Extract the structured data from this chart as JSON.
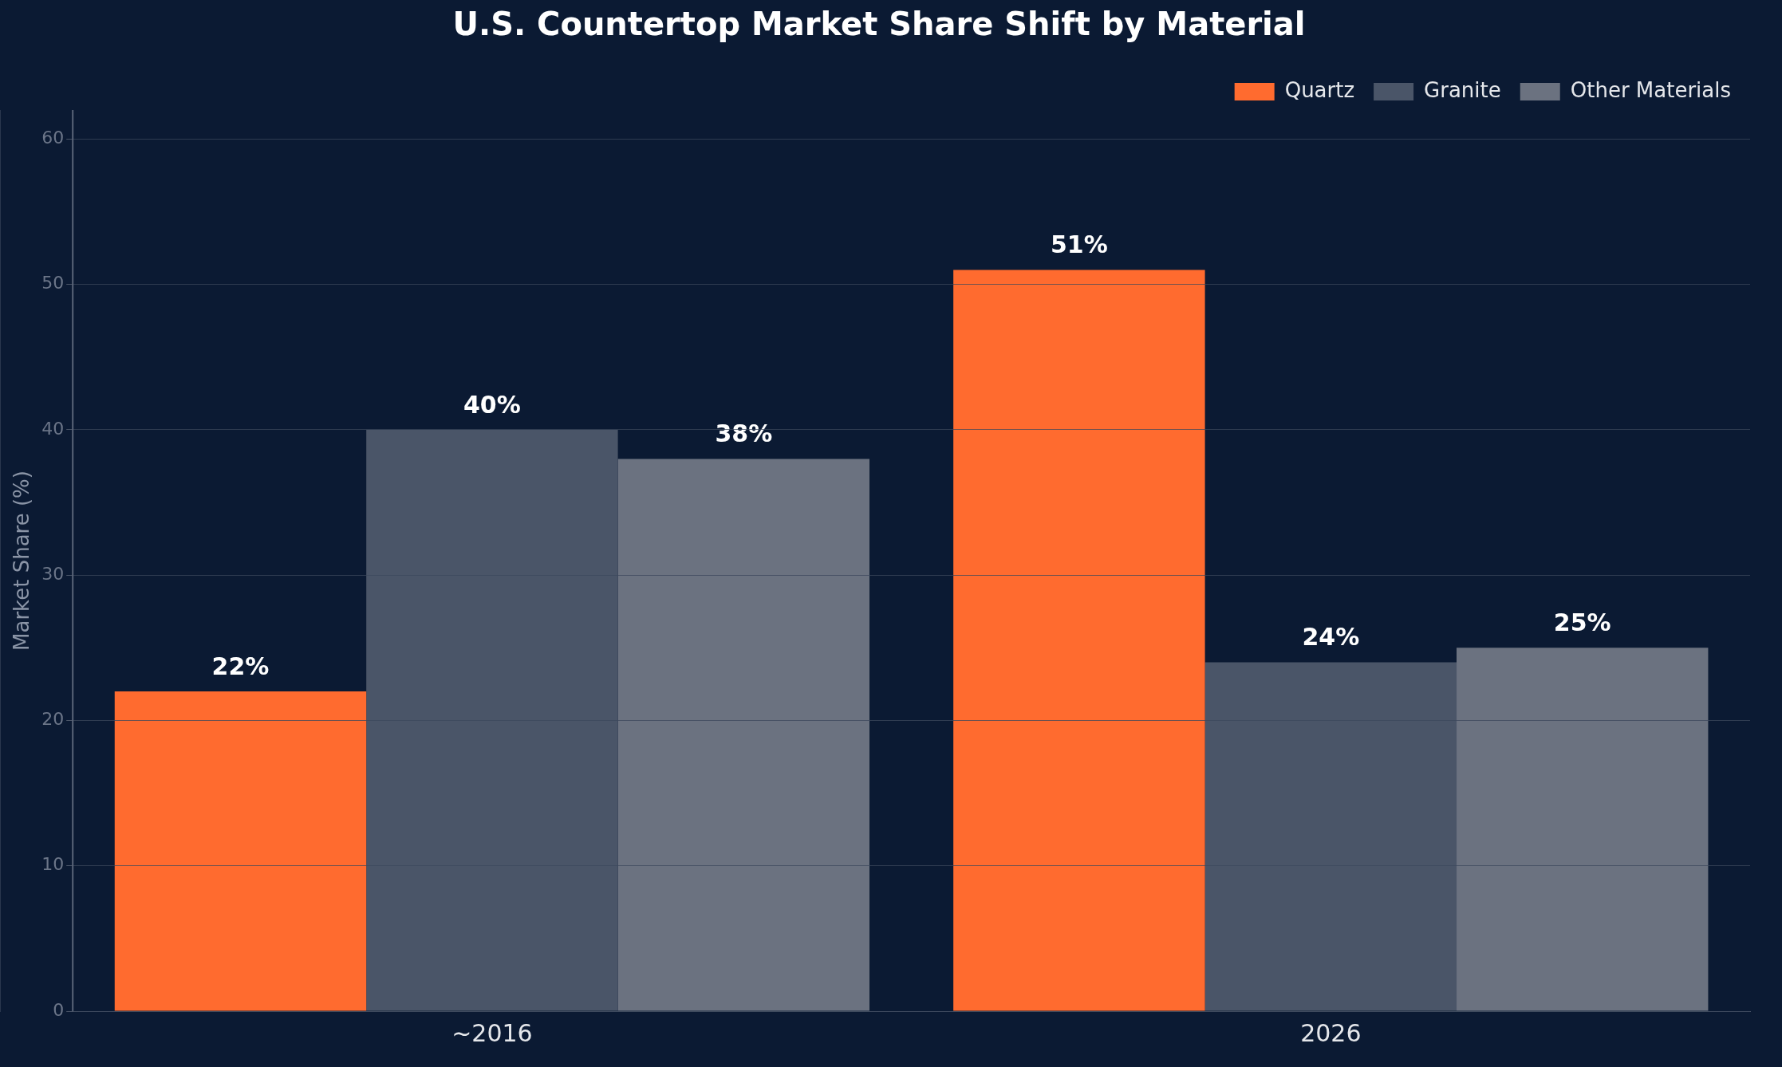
{
  "chart_data": {
    "type": "bar",
    "title": "U.S. Countertop Market Share Shift by Material",
    "ylabel": "Market Share (%)",
    "categories": [
      "~2016",
      "2026"
    ],
    "series": [
      {
        "name": "Quartz",
        "color": "#ff6b2f",
        "values": [
          22,
          51
        ],
        "value_labels": [
          "22%",
          "51%"
        ]
      },
      {
        "name": "Granite",
        "color": "#4a5568",
        "values": [
          40,
          24
        ],
        "value_labels": [
          "40%",
          "24%"
        ]
      },
      {
        "name": "Other Materials",
        "color": "#6b7280",
        "values": [
          38,
          25
        ],
        "value_labels": [
          "38%",
          "25%"
        ]
      }
    ],
    "ylim": [
      0,
      62
    ],
    "yticks": [
      0,
      10,
      20,
      30,
      40,
      50,
      60
    ],
    "grid": "y",
    "legend": "top right"
  }
}
